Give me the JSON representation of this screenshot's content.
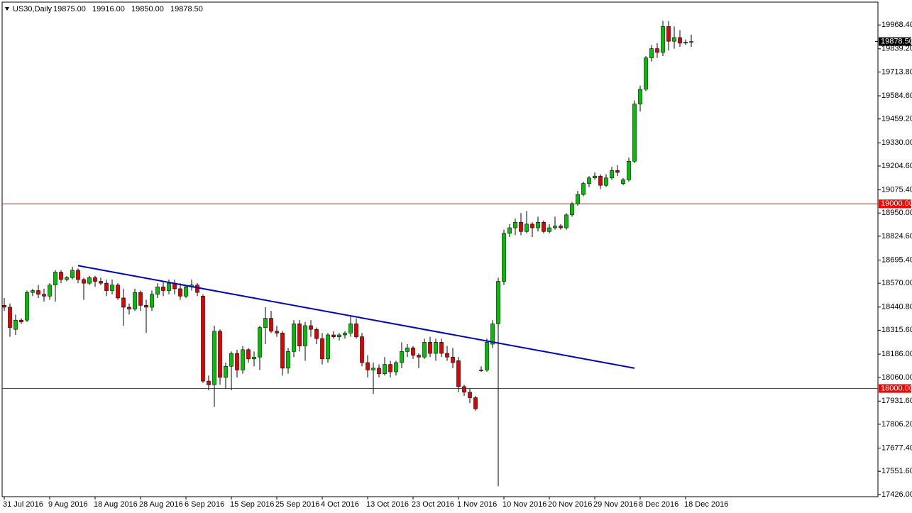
{
  "chart_data": {
    "type": "candlestick",
    "header": {
      "symbol": "US30,Daily",
      "ohlc_text": [
        "19875.00",
        "19916.00",
        "19850.00",
        "19878.50"
      ]
    },
    "categories": [
      "31 Jul 2016",
      null,
      null,
      null,
      null,
      null,
      null,
      null,
      "9 Aug 2016",
      null,
      null,
      null,
      null,
      null,
      null,
      null,
      "18 Aug 2016",
      null,
      null,
      null,
      null,
      null,
      null,
      null,
      "28 Aug 2016",
      null,
      null,
      null,
      null,
      null,
      null,
      null,
      "6 Sep 2016",
      null,
      null,
      null,
      null,
      null,
      null,
      null,
      "15 Sep 2016",
      null,
      null,
      null,
      null,
      null,
      null,
      null,
      "25 Sep 2016",
      null,
      null,
      null,
      null,
      null,
      null,
      null,
      "4 Oct 2016",
      null,
      null,
      null,
      null,
      null,
      null,
      null,
      "13 Oct 2016",
      null,
      null,
      null,
      null,
      null,
      null,
      null,
      "23 Oct 2016",
      null,
      null,
      null,
      null,
      null,
      null,
      null,
      "1 Nov 2016",
      null,
      null,
      null,
      null,
      null,
      null,
      null,
      "10 Nov 2016",
      null,
      null,
      null,
      null,
      null,
      null,
      null,
      "20 Nov 2016",
      null,
      null,
      null,
      null,
      null,
      null,
      null,
      "29 Nov 2016",
      null,
      null,
      null,
      null,
      null,
      null,
      null,
      "8 Dec 2016",
      null,
      null,
      null,
      null,
      null,
      null,
      null,
      "18 Dec 2016",
      null
    ],
    "candles": [
      [
        18450,
        18490,
        18420,
        18440
      ],
      [
        18440,
        18460,
        18280,
        18330
      ],
      [
        18320,
        18400,
        18290,
        18370
      ],
      [
        18370,
        18380,
        18350,
        18360
      ],
      [
        18370,
        18530,
        18360,
        18520
      ],
      [
        18520,
        18540,
        18500,
        18530
      ],
      [
        18530,
        18560,
        18490,
        18510
      ],
      [
        18510,
        18540,
        18470,
        18500
      ],
      [
        18500,
        18570,
        18480,
        18560
      ],
      [
        18560,
        18640,
        18470,
        18630
      ],
      [
        18630,
        18640,
        18570,
        18590
      ],
      [
        18590,
        18610,
        18580,
        18600
      ],
      [
        18600,
        18660,
        18590,
        18640
      ],
      [
        18640,
        18650,
        18570,
        18590
      ],
      [
        18590,
        18600,
        18480,
        18570
      ],
      [
        18570,
        18610,
        18560,
        18600
      ],
      [
        18600,
        18610,
        18550,
        18580
      ],
      [
        18580,
        18600,
        18560,
        18570
      ],
      [
        18570,
        18590,
        18500,
        18530
      ],
      [
        18530,
        18590,
        18510,
        18560
      ],
      [
        18560,
        18570,
        18480,
        18490
      ],
      [
        18490,
        18540,
        18340,
        18440
      ],
      [
        18440,
        18460,
        18400,
        18430
      ],
      [
        18430,
        18540,
        18420,
        18520
      ],
      [
        18520,
        18530,
        18420,
        18450
      ],
      [
        18450,
        18480,
        18300,
        18440
      ],
      [
        18440,
        18530,
        18420,
        18510
      ],
      [
        18510,
        18570,
        18490,
        18550
      ],
      [
        18550,
        18580,
        18500,
        18530
      ],
      [
        18530,
        18590,
        18510,
        18570
      ],
      [
        18570,
        18590,
        18510,
        18540
      ],
      [
        18540,
        18570,
        18480,
        18500
      ],
      [
        18500,
        18560,
        18490,
        18550
      ],
      [
        18550,
        18590,
        18530,
        18560
      ],
      [
        18560,
        18570,
        18500,
        18520
      ],
      [
        18500,
        18510,
        18030,
        18040
      ],
      [
        18040,
        18070,
        17990,
        18020
      ],
      [
        18020,
        18340,
        17900,
        18310
      ],
      [
        18310,
        18320,
        18020,
        18060
      ],
      [
        18060,
        18140,
        18000,
        18120
      ],
      [
        18120,
        18200,
        17990,
        18190
      ],
      [
        18190,
        18210,
        18060,
        18100
      ],
      [
        18100,
        18230,
        18080,
        18210
      ],
      [
        18210,
        18220,
        18140,
        18160
      ],
      [
        18160,
        18200,
        18120,
        18170
      ],
      [
        18170,
        18340,
        18100,
        18330
      ],
      [
        18330,
        18440,
        18240,
        18380
      ],
      [
        18380,
        18420,
        18300,
        18310
      ],
      [
        18310,
        18340,
        18280,
        18300
      ],
      [
        18300,
        18310,
        18070,
        18110
      ],
      [
        18110,
        18220,
        18080,
        18200
      ],
      [
        18200,
        18370,
        18170,
        18350
      ],
      [
        18350,
        18370,
        18200,
        18230
      ],
      [
        18230,
        18360,
        18150,
        18340
      ],
      [
        18340,
        18370,
        18280,
        18320
      ],
      [
        18320,
        18330,
        18240,
        18270
      ],
      [
        18270,
        18300,
        18130,
        18160
      ],
      [
        18160,
        18300,
        18140,
        18290
      ],
      [
        18290,
        18310,
        18270,
        18280
      ],
      [
        18280,
        18300,
        18260,
        18290
      ],
      [
        18290,
        18310,
        18270,
        18300
      ],
      [
        18300,
        18390,
        18280,
        18350
      ],
      [
        18350,
        18380,
        18270,
        18280
      ],
      [
        18280,
        18300,
        18120,
        18140
      ],
      [
        18140,
        18180,
        18060,
        18100
      ],
      [
        18100,
        18140,
        17970,
        18110
      ],
      [
        18110,
        18130,
        18060,
        18080
      ],
      [
        18080,
        18170,
        18070,
        18130
      ],
      [
        18130,
        18150,
        18060,
        18090
      ],
      [
        18090,
        18150,
        18070,
        18140
      ],
      [
        18140,
        18250,
        18110,
        18200
      ],
      [
        18200,
        18240,
        18170,
        18220
      ],
      [
        18220,
        18230,
        18160,
        18180
      ],
      [
        18180,
        18190,
        18110,
        18170
      ],
      [
        18170,
        18270,
        18160,
        18250
      ],
      [
        18250,
        18280,
        18170,
        18190
      ],
      [
        18190,
        18270,
        18150,
        18250
      ],
      [
        18250,
        18270,
        18170,
        18190
      ],
      [
        18190,
        18230,
        18150,
        18170
      ],
      [
        18170,
        18220,
        18110,
        18140
      ],
      [
        18150,
        18170,
        17980,
        18010
      ],
      [
        18010,
        18020,
        17960,
        17980
      ],
      [
        17980,
        18000,
        17920,
        17950
      ],
      [
        17950,
        17960,
        17880,
        17890
      ],
      [
        18100,
        18120,
        18090,
        18100
      ],
      [
        18100,
        18270,
        18090,
        18250
      ],
      [
        18240,
        18370,
        18220,
        18350
      ],
      [
        18350,
        18600,
        17470,
        18580
      ],
      [
        18580,
        18860,
        18560,
        18840
      ],
      [
        18840,
        18890,
        18820,
        18870
      ],
      [
        18870,
        18920,
        18830,
        18900
      ],
      [
        18900,
        18950,
        18830,
        18850
      ],
      [
        18850,
        18960,
        18840,
        18890
      ],
      [
        18890,
        18900,
        18820,
        18870
      ],
      [
        18870,
        18930,
        18850,
        18900
      ],
      [
        18900,
        18910,
        18840,
        18850
      ],
      [
        18850,
        18890,
        18840,
        18870
      ],
      [
        18870,
        18930,
        18860,
        18880
      ],
      [
        18880,
        18890,
        18860,
        18870
      ],
      [
        18870,
        18950,
        18860,
        18940
      ],
      [
        18940,
        19010,
        18930,
        19000
      ],
      [
        19000,
        19070,
        18990,
        19050
      ],
      [
        19050,
        19120,
        19040,
        19110
      ],
      [
        19110,
        19150,
        19090,
        19140
      ],
      [
        19140,
        19170,
        19130,
        19150
      ],
      [
        19150,
        19160,
        19080,
        19100
      ],
      [
        19100,
        19160,
        19090,
        19140
      ],
      [
        19140,
        19200,
        19130,
        19180
      ],
      [
        19180,
        19210,
        19150,
        19170
      ],
      [
        19110,
        19140,
        19100,
        19130
      ],
      [
        19130,
        19250,
        19120,
        19230
      ],
      [
        19230,
        19560,
        19220,
        19540
      ],
      [
        19540,
        19640,
        19500,
        19620
      ],
      [
        19620,
        19800,
        19610,
        19790
      ],
      [
        19790,
        19860,
        19770,
        19840
      ],
      [
        19840,
        19870,
        19790,
        19820
      ],
      [
        19820,
        19990,
        19800,
        19960
      ],
      [
        19960,
        19990,
        19830,
        19880
      ],
      [
        19880,
        19960,
        19840,
        19900
      ],
      [
        19900,
        19940,
        19850,
        19870
      ],
      [
        19870,
        19890,
        19860,
        19875
      ],
      [
        19875,
        19916,
        19850,
        19878.5
      ]
    ],
    "up_color": "#00c000",
    "down_color": "#e00000",
    "trendline": {
      "start": [
        13,
        18665
      ],
      "end": [
        111,
        18110
      ],
      "color": "#0000cc"
    },
    "hlines": [
      {
        "value": 19000,
        "label": "19000.00"
      },
      {
        "value": 18000,
        "label": "18000.00"
      }
    ],
    "hline_color": "#ff0000",
    "last_price": {
      "value": 19878.5,
      "label": "19878.50"
    },
    "ylim": [
      17414,
      20092
    ],
    "yticks": [
      {
        "value": 17426,
        "label": "17426.00"
      },
      {
        "value": 17551.6,
        "label": "17551.60"
      },
      {
        "value": 17677.4,
        "label": "17677.40"
      },
      {
        "value": 17806.2,
        "label": "17806.20"
      },
      {
        "value": 17931.6,
        "label": "17931.60"
      },
      {
        "value": 18060,
        "label": "18060.00"
      },
      {
        "value": 18186,
        "label": "18186.00"
      },
      {
        "value": 18315.6,
        "label": "18315.60"
      },
      {
        "value": 18440.8,
        "label": "18440.80"
      },
      {
        "value": 18570,
        "label": "18570.00"
      },
      {
        "value": 18695.4,
        "label": "18695.40"
      },
      {
        "value": 18824.6,
        "label": "18824.60"
      },
      {
        "value": 18950,
        "label": "18950.00"
      },
      {
        "value": 19075.4,
        "label": "19075.40"
      },
      {
        "value": 19204.6,
        "label": "19204.60"
      },
      {
        "value": 19330,
        "label": "19330.00"
      },
      {
        "value": 19459.2,
        "label": "19459.20"
      },
      {
        "value": 19584.6,
        "label": "19584.60"
      },
      {
        "value": 19713.8,
        "label": "19713.80"
      },
      {
        "value": 19839.2,
        "label": "19839.20"
      },
      {
        "value": 19968.4,
        "label": "19968.40"
      }
    ]
  }
}
